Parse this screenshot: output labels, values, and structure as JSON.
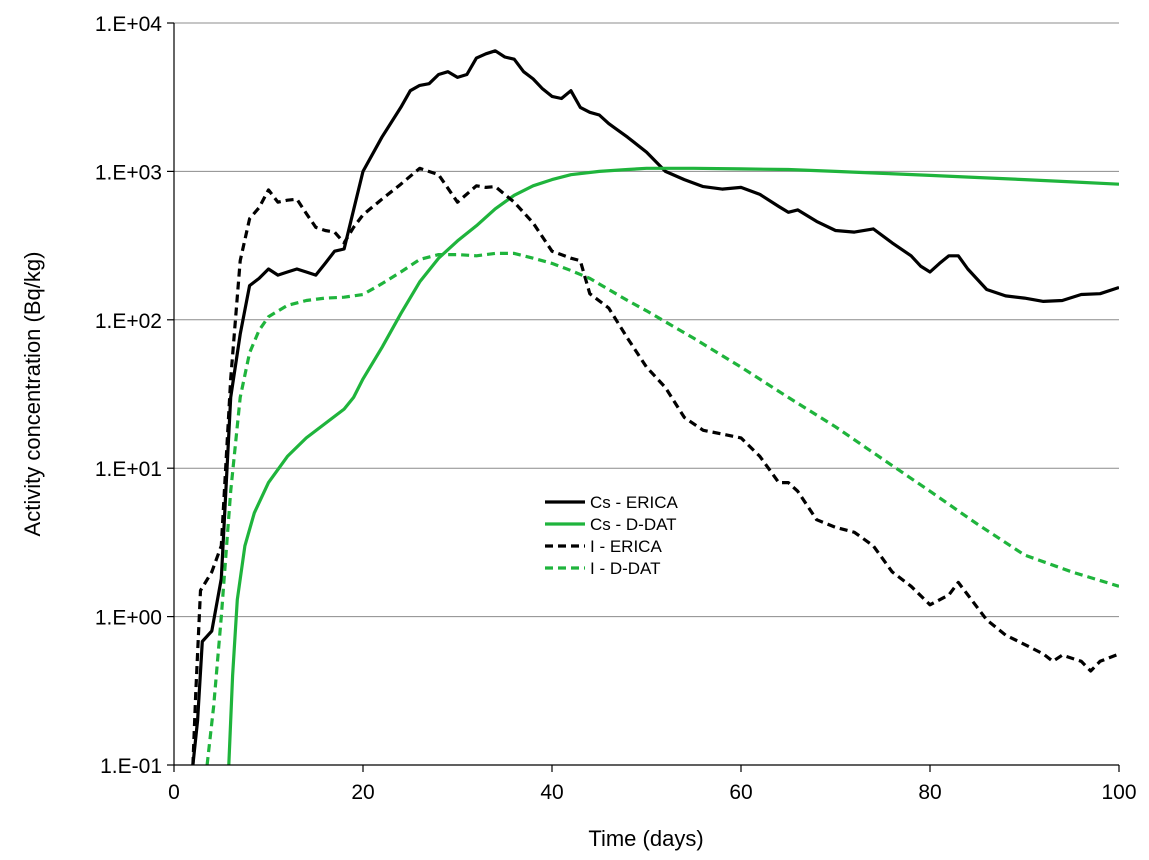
{
  "chart_data": {
    "type": "line",
    "title": "",
    "xlabel": "Time  (days)",
    "ylabel": "Activity concentration (Bq/kg)",
    "xlim": [
      0,
      100
    ],
    "ylim": [
      0.1,
      10000
    ],
    "yscale": "log",
    "grid": "horizontal major",
    "legend_position": "center",
    "x_ticks": [
      0,
      20,
      40,
      60,
      80,
      100
    ],
    "x_tick_labels": [
      "0",
      "20",
      "40",
      "60",
      "80",
      "100"
    ],
    "y_ticks": [
      0.1,
      1,
      10,
      100,
      1000,
      10000
    ],
    "y_tick_labels": [
      "1.E-01",
      "1.E+00",
      "1.E+01",
      "1.E+02",
      "1.E+03",
      "1.E+04"
    ],
    "series": [
      {
        "name": "Cs - ERICA",
        "color": "#000000",
        "dash": "solid",
        "points": [
          [
            2,
            0.1
          ],
          [
            2.5,
            0.2
          ],
          [
            3,
            0.68
          ],
          [
            4,
            0.8
          ],
          [
            5,
            1.8
          ],
          [
            6,
            30
          ],
          [
            7,
            80
          ],
          [
            8,
            170
          ],
          [
            9,
            190
          ],
          [
            10,
            220
          ],
          [
            11,
            200
          ],
          [
            12,
            210
          ],
          [
            13,
            220
          ],
          [
            14,
            210
          ],
          [
            15,
            200
          ],
          [
            16,
            240
          ],
          [
            17,
            290
          ],
          [
            18,
            300
          ],
          [
            19,
            550
          ],
          [
            20,
            1000
          ],
          [
            22,
            1700
          ],
          [
            24,
            2700
          ],
          [
            25,
            3500
          ],
          [
            26,
            3800
          ],
          [
            27,
            3900
          ],
          [
            28,
            4500
          ],
          [
            29,
            4700
          ],
          [
            30,
            4300
          ],
          [
            31,
            4500
          ],
          [
            32,
            5800
          ],
          [
            33,
            6200
          ],
          [
            34,
            6500
          ],
          [
            35,
            5900
          ],
          [
            36,
            5700
          ],
          [
            37,
            4700
          ],
          [
            38,
            4200
          ],
          [
            39,
            3600
          ],
          [
            40,
            3200
          ],
          [
            41,
            3100
          ],
          [
            42,
            3500
          ],
          [
            43,
            2700
          ],
          [
            44,
            2500
          ],
          [
            45,
            2400
          ],
          [
            46,
            2100
          ],
          [
            48,
            1700
          ],
          [
            50,
            1350
          ],
          [
            52,
            1000
          ],
          [
            54,
            880
          ],
          [
            56,
            790
          ],
          [
            58,
            760
          ],
          [
            60,
            780
          ],
          [
            62,
            700
          ],
          [
            64,
            580
          ],
          [
            65,
            530
          ],
          [
            66,
            550
          ],
          [
            68,
            460
          ],
          [
            70,
            400
          ],
          [
            72,
            390
          ],
          [
            74,
            410
          ],
          [
            76,
            330
          ],
          [
            78,
            270
          ],
          [
            79,
            230
          ],
          [
            80,
            210
          ],
          [
            81,
            240
          ],
          [
            82,
            270
          ],
          [
            83,
            270
          ],
          [
            84,
            220
          ],
          [
            86,
            160
          ],
          [
            88,
            145
          ],
          [
            90,
            140
          ],
          [
            92,
            133
          ],
          [
            94,
            135
          ],
          [
            96,
            148
          ],
          [
            98,
            150
          ],
          [
            100,
            165
          ]
        ]
      },
      {
        "name": "Cs - D-DAT",
        "color": "#1fb43c",
        "dash": "solid",
        "points": [
          [
            5.8,
            0.1
          ],
          [
            6.2,
            0.4
          ],
          [
            6.7,
            1.3
          ],
          [
            7.5,
            3
          ],
          [
            8.5,
            5
          ],
          [
            10,
            8
          ],
          [
            12,
            12
          ],
          [
            14,
            16
          ],
          [
            16,
            20
          ],
          [
            18,
            25
          ],
          [
            19,
            30
          ],
          [
            20,
            40
          ],
          [
            22,
            65
          ],
          [
            24,
            110
          ],
          [
            26,
            180
          ],
          [
            28,
            260
          ],
          [
            30,
            340
          ],
          [
            32,
            430
          ],
          [
            34,
            560
          ],
          [
            36,
            690
          ],
          [
            38,
            800
          ],
          [
            40,
            880
          ],
          [
            42,
            950
          ],
          [
            45,
            1000
          ],
          [
            48,
            1030
          ],
          [
            50,
            1050
          ],
          [
            55,
            1050
          ],
          [
            60,
            1040
          ],
          [
            65,
            1030
          ],
          [
            70,
            1000
          ],
          [
            75,
            970
          ],
          [
            80,
            940
          ],
          [
            85,
            910
          ],
          [
            90,
            880
          ],
          [
            95,
            850
          ],
          [
            100,
            820
          ]
        ]
      },
      {
        "name": "I - ERICA",
        "color": "#000000",
        "dash": "dashed",
        "points": [
          [
            2,
            0.1
          ],
          [
            2.3,
            0.3
          ],
          [
            2.8,
            1.5
          ],
          [
            4,
            2
          ],
          [
            5,
            3
          ],
          [
            6,
            40
          ],
          [
            7,
            250
          ],
          [
            8,
            480
          ],
          [
            9,
            570
          ],
          [
            10,
            750
          ],
          [
            11,
            620
          ],
          [
            12,
            640
          ],
          [
            13,
            650
          ],
          [
            14,
            520
          ],
          [
            15,
            420
          ],
          [
            16,
            400
          ],
          [
            17,
            390
          ],
          [
            18,
            330
          ],
          [
            19,
            420
          ],
          [
            20,
            510
          ],
          [
            22,
            650
          ],
          [
            24,
            820
          ],
          [
            26,
            1050
          ],
          [
            28,
            950
          ],
          [
            30,
            620
          ],
          [
            32,
            800
          ],
          [
            33,
            780
          ],
          [
            34,
            790
          ],
          [
            36,
            620
          ],
          [
            38,
            450
          ],
          [
            40,
            290
          ],
          [
            42,
            260
          ],
          [
            43,
            250
          ],
          [
            44,
            150
          ],
          [
            46,
            120
          ],
          [
            48,
            75
          ],
          [
            50,
            48
          ],
          [
            52,
            35
          ],
          [
            54,
            22
          ],
          [
            56,
            18
          ],
          [
            58,
            17
          ],
          [
            60,
            16
          ],
          [
            62,
            12
          ],
          [
            64,
            8
          ],
          [
            65,
            8
          ],
          [
            66,
            7
          ],
          [
            68,
            4.5
          ],
          [
            70,
            4
          ],
          [
            72,
            3.7
          ],
          [
            74,
            3
          ],
          [
            76,
            2
          ],
          [
            78,
            1.6
          ],
          [
            80,
            1.2
          ],
          [
            82,
            1.4
          ],
          [
            83,
            1.7
          ],
          [
            84,
            1.4
          ],
          [
            86,
            0.95
          ],
          [
            88,
            0.75
          ],
          [
            90,
            0.65
          ],
          [
            92,
            0.56
          ],
          [
            93,
            0.5
          ],
          [
            94,
            0.55
          ],
          [
            96,
            0.5
          ],
          [
            97,
            0.43
          ],
          [
            98,
            0.5
          ],
          [
            100,
            0.56
          ]
        ]
      },
      {
        "name": "I - D-DAT",
        "color": "#1fb43c",
        "dash": "dashed",
        "points": [
          [
            3.5,
            0.1
          ],
          [
            4.2,
            0.25
          ],
          [
            5,
            1
          ],
          [
            6,
            7
          ],
          [
            7,
            30
          ],
          [
            8,
            60
          ],
          [
            9,
            85
          ],
          [
            10,
            105
          ],
          [
            12,
            125
          ],
          [
            14,
            135
          ],
          [
            16,
            140
          ],
          [
            18,
            142
          ],
          [
            20,
            148
          ],
          [
            22,
            175
          ],
          [
            24,
            210
          ],
          [
            26,
            255
          ],
          [
            28,
            275
          ],
          [
            30,
            275
          ],
          [
            32,
            270
          ],
          [
            34,
            280
          ],
          [
            36,
            280
          ],
          [
            38,
            260
          ],
          [
            40,
            240
          ],
          [
            42,
            215
          ],
          [
            44,
            190
          ],
          [
            46,
            160
          ],
          [
            48,
            135
          ],
          [
            50,
            115
          ],
          [
            55,
            75
          ],
          [
            60,
            48
          ],
          [
            65,
            30
          ],
          [
            70,
            19
          ],
          [
            75,
            11.5
          ],
          [
            80,
            7
          ],
          [
            85,
            4.2
          ],
          [
            90,
            2.6
          ],
          [
            95,
            2
          ],
          [
            100,
            1.6
          ]
        ]
      }
    ]
  }
}
